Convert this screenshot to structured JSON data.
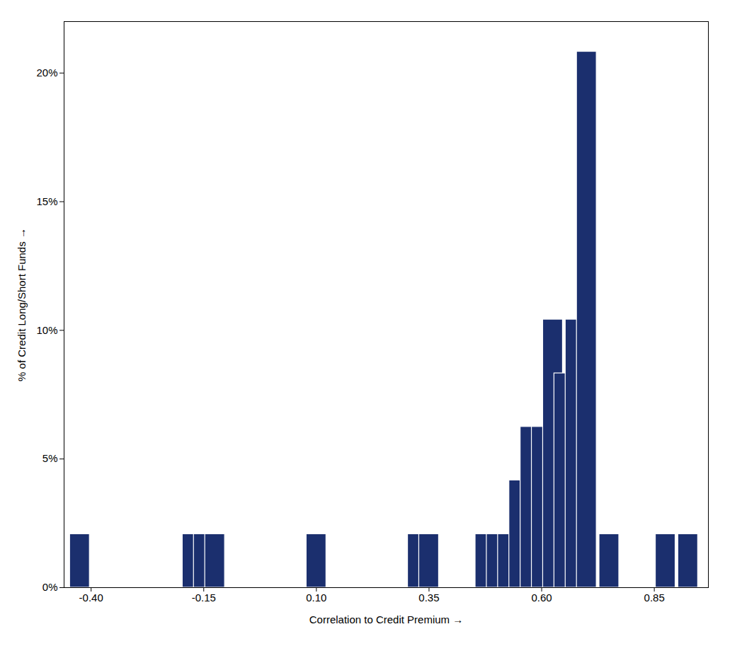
{
  "chart_data": {
    "type": "bar",
    "xlabel": "Correlation to Credit Premium",
    "ylabel": "% of Credit Long/Short Funds",
    "x": [
      -0.425,
      -0.175,
      -0.15,
      -0.125,
      0.1,
      0.325,
      0.35,
      0.475,
      0.5,
      0.525,
      0.55,
      0.575,
      0.6,
      0.625,
      0.65,
      0.675,
      0.7,
      0.75,
      0.875,
      0.925
    ],
    "values": [
      2.08,
      2.08,
      2.08,
      2.08,
      2.08,
      2.08,
      2.08,
      2.08,
      2.08,
      2.08,
      4.17,
      6.25,
      6.25,
      10.42,
      8.33,
      10.42,
      20.83,
      2.08,
      2.08,
      2.08
    ],
    "color": "#1b2f6e",
    "xlim": [
      -0.46,
      0.97
    ],
    "xticks": [
      {
        "value": -0.4,
        "label": "-0.40"
      },
      -0.15,
      {
        "value": 0.1,
        "label": "0.10"
      },
      0.35,
      {
        "value": 0.6,
        "label": "0.60"
      },
      0.85
    ],
    "ylim": [
      0,
      22
    ],
    "yticks": [
      {
        "value": 0,
        "label": "0%"
      },
      {
        "value": 5,
        "label": "5%"
      },
      {
        "value": 10,
        "label": "10%"
      },
      {
        "value": 15,
        "label": "15%"
      },
      {
        "value": 20,
        "label": "20%"
      }
    ]
  }
}
